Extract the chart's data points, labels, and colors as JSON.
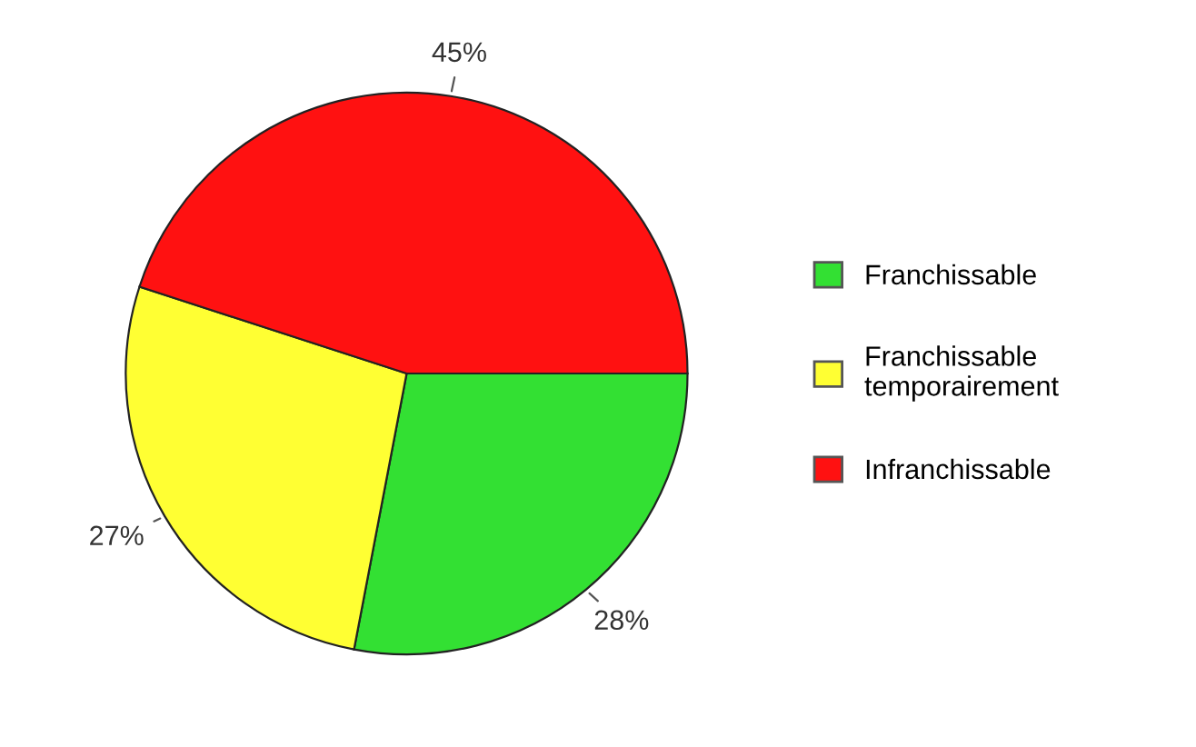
{
  "chart_data": {
    "type": "pie",
    "categories": [
      "Franchissable",
      "Franchissable\ntemporairement",
      "Infranchissable"
    ],
    "values": [
      28,
      27,
      45
    ],
    "colors": [
      "#33e033",
      "#ffff33",
      "#ff1111"
    ],
    "value_labels": [
      "28%",
      "27%",
      "45%"
    ],
    "legend": "right"
  }
}
